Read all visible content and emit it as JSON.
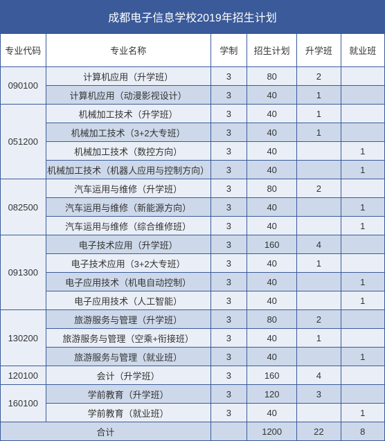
{
  "title": "成都电子信息学校2019年招生计划",
  "colors": {
    "header_bg": "#3a5a99",
    "header_text": "#ffffff",
    "border": "#3a5a99",
    "row_odd": "#eaeff7",
    "row_even": "#cdd9ea",
    "text": "#333333",
    "thead_bg": "#ffffff"
  },
  "columns": [
    {
      "key": "code",
      "label": "专业代码"
    },
    {
      "key": "name",
      "label": "专业名称"
    },
    {
      "key": "dur",
      "label": "学制"
    },
    {
      "key": "plan",
      "label": "招生计划"
    },
    {
      "key": "up",
      "label": "升学班"
    },
    {
      "key": "job",
      "label": "就业班"
    }
  ],
  "groups": [
    {
      "code": "090100",
      "rows": [
        {
          "name": "计算机应用（升学班）",
          "dur": "3",
          "plan": "80",
          "up": "2",
          "job": ""
        },
        {
          "name": "计算机应用（动漫影视设计）",
          "dur": "3",
          "plan": "40",
          "up": "1",
          "job": ""
        }
      ]
    },
    {
      "code": "051200",
      "rows": [
        {
          "name": "机械加工技术（升学班）",
          "dur": "3",
          "plan": "40",
          "up": "1",
          "job": ""
        },
        {
          "name": "机械加工技术（3+2大专班）",
          "dur": "3",
          "plan": "40",
          "up": "1",
          "job": ""
        },
        {
          "name": "机械加工技术（数控方向）",
          "dur": "3",
          "plan": "40",
          "up": "",
          "job": "1"
        },
        {
          "name": "机械加工技术（机器人应用与控制方向）",
          "dur": "3",
          "plan": "40",
          "up": "",
          "job": "1"
        }
      ]
    },
    {
      "code": "082500",
      "rows": [
        {
          "name": "汽车运用与维修（升学班）",
          "dur": "3",
          "plan": "80",
          "up": "2",
          "job": ""
        },
        {
          "name": "汽车运用与维修（新能源方向）",
          "dur": "3",
          "plan": "40",
          "up": "",
          "job": "1"
        },
        {
          "name": "汽车运用与维修（综合维修班）",
          "dur": "3",
          "plan": "40",
          "up": "",
          "job": "1"
        }
      ]
    },
    {
      "code": "091300",
      "rows": [
        {
          "name": "电子技术应用（升学班）",
          "dur": "3",
          "plan": "160",
          "up": "4",
          "job": ""
        },
        {
          "name": "电子技术应用（3+2大专班）",
          "dur": "3",
          "plan": "40",
          "up": "1",
          "job": ""
        },
        {
          "name": "电子应用技术（机电自动控制）",
          "dur": "3",
          "plan": "40",
          "up": "",
          "job": "1"
        },
        {
          "name": "电子应用技术（人工智能）",
          "dur": "3",
          "plan": "40",
          "up": "",
          "job": "1"
        }
      ]
    },
    {
      "code": "130200",
      "rows": [
        {
          "name": "旅游服务与管理（升学班）",
          "dur": "3",
          "plan": "80",
          "up": "2",
          "job": ""
        },
        {
          "name": "旅游服务与管理（空乘+衔接班）",
          "dur": "3",
          "plan": "40",
          "up": "1",
          "job": ""
        },
        {
          "name": "旅游服务与管理（就业班）",
          "dur": "3",
          "plan": "40",
          "up": "",
          "job": "1"
        }
      ]
    },
    {
      "code": "120100",
      "rows": [
        {
          "name": "会计（升学班）",
          "dur": "3",
          "plan": "160",
          "up": "4",
          "job": ""
        }
      ]
    },
    {
      "code": "160100",
      "rows": [
        {
          "name": "学前教育（升学班）",
          "dur": "3",
          "plan": "120",
          "up": "3",
          "job": ""
        },
        {
          "name": "学前教育（就业班）",
          "dur": "3",
          "plan": "40",
          "up": "",
          "job": "1"
        }
      ]
    }
  ],
  "total": {
    "label": "合计",
    "dur": "",
    "plan": "1200",
    "up": "22",
    "job": "8"
  }
}
